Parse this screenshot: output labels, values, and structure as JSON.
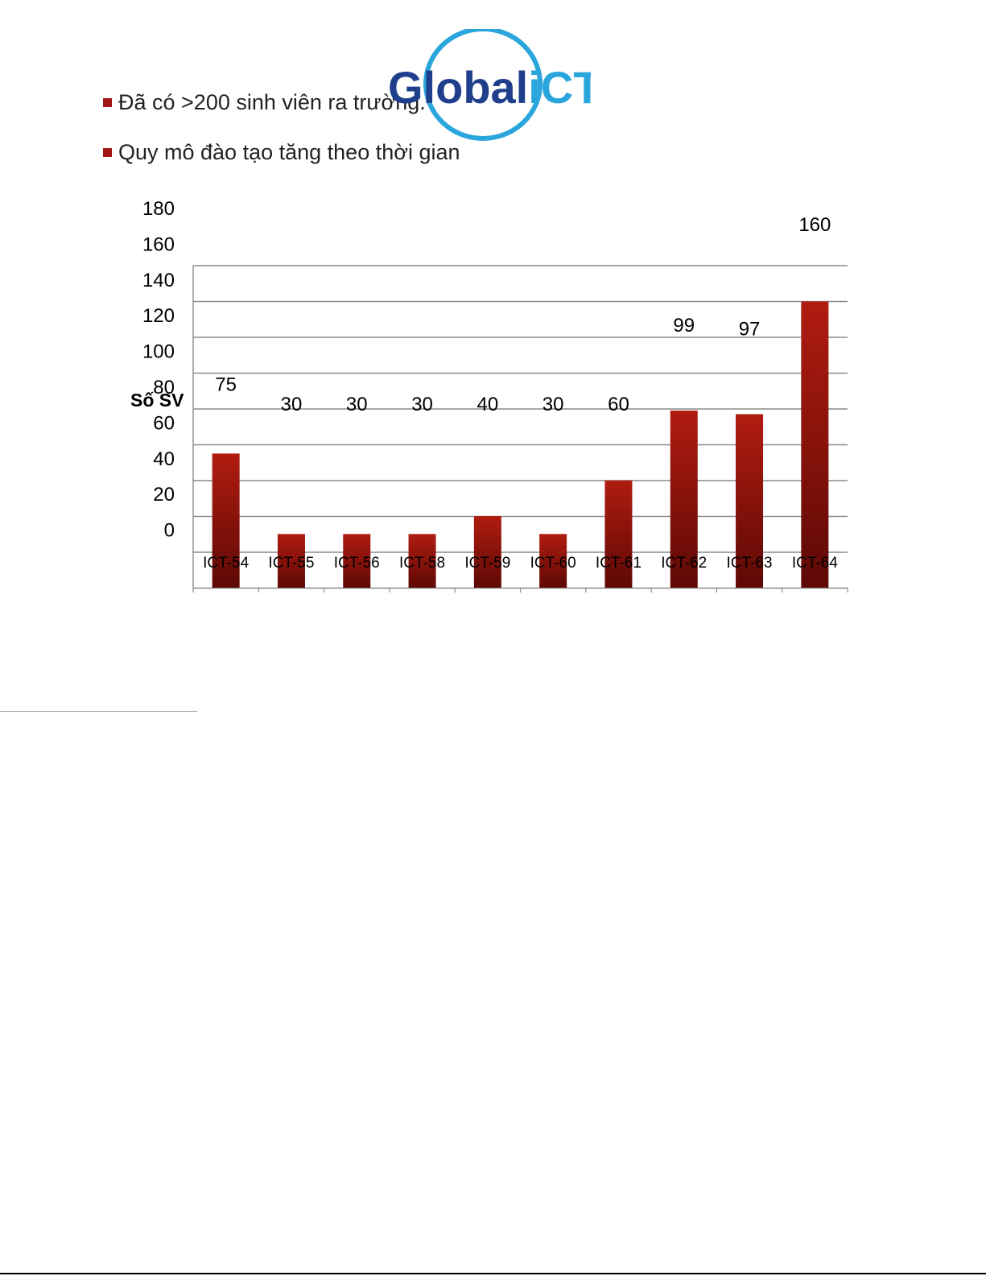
{
  "bullets": [
    "Đã có >200 sinh viên ra trường.",
    "Quy mô đào tạo tăng theo thời gian"
  ],
  "logo": {
    "text_dark": "Global",
    "text_accent": "iCT",
    "color_dark": "#1f3f8c",
    "color_accent": "#2aa6dd"
  },
  "colors": {
    "bar_top": "#b01c10",
    "bar_bottom": "#5e0905",
    "bullet": "#a31515"
  },
  "chart_data": {
    "type": "bar",
    "ylabel": "Số SV",
    "xlabel": "",
    "yticks": [
      0,
      20,
      40,
      60,
      80,
      100,
      120,
      140,
      160,
      180
    ],
    "ylim": [
      0,
      180
    ],
    "grid": true,
    "categories": [
      "ICT-54",
      "ICT-55",
      "ICT-56",
      "ICT-58",
      "ICT-59",
      "ICT-60",
      "ICT-61",
      "ICT-62",
      "ICT-63",
      "ICT-64"
    ],
    "values": [
      75,
      30,
      30,
      30,
      40,
      30,
      60,
      99,
      97,
      160
    ],
    "data_labels": [
      "75",
      "30",
      "30",
      "30",
      "40",
      "30",
      "60",
      "99",
      "97",
      "160"
    ]
  }
}
